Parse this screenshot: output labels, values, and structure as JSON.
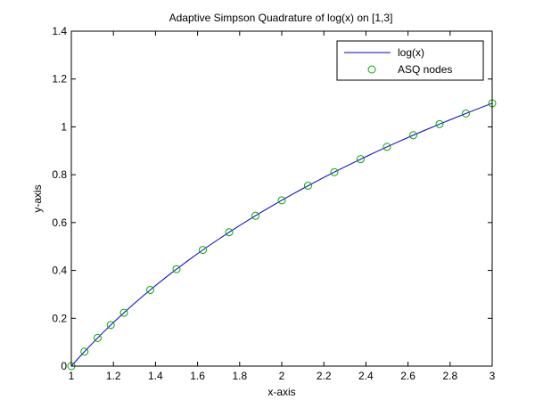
{
  "chart_data": {
    "type": "line",
    "title": "Adaptive Simpson Quadrature of log(x) on [1,3]",
    "xlabel": "x-axis",
    "ylabel": "y-axis",
    "xlim": [
      1,
      3
    ],
    "ylim": [
      0,
      1.4
    ],
    "xticks": [
      1,
      1.2,
      1.4,
      1.6,
      1.8,
      2,
      2.2,
      2.4,
      2.6,
      2.8,
      3
    ],
    "xtick_labels": [
      "1",
      "1.2",
      "1.4",
      "1.6",
      "1.8",
      "2",
      "2.2",
      "2.4",
      "2.6",
      "2.8",
      "3"
    ],
    "yticks": [
      0,
      0.2,
      0.4,
      0.6,
      0.8,
      1,
      1.2,
      1.4
    ],
    "ytick_labels": [
      "0",
      "0.2",
      "0.4",
      "0.6",
      "0.8",
      "1",
      "1.2",
      "1.4"
    ],
    "grid": false,
    "legend_position": "top-right",
    "series": [
      {
        "name": "log(x)",
        "style": "line",
        "color": "#0000cc",
        "x": [
          1,
          1.05,
          1.1,
          1.15,
          1.2,
          1.25,
          1.3,
          1.35,
          1.4,
          1.45,
          1.5,
          1.55,
          1.6,
          1.65,
          1.7,
          1.75,
          1.8,
          1.85,
          1.9,
          1.95,
          2,
          2.05,
          2.1,
          2.15,
          2.2,
          2.25,
          2.3,
          2.35,
          2.4,
          2.45,
          2.5,
          2.55,
          2.6,
          2.65,
          2.7,
          2.75,
          2.8,
          2.85,
          2.9,
          2.95,
          3
        ],
        "y": [
          0,
          0.0488,
          0.0953,
          0.1398,
          0.1823,
          0.2231,
          0.2624,
          0.3001,
          0.3365,
          0.3716,
          0.4055,
          0.4383,
          0.47,
          0.5008,
          0.5306,
          0.5596,
          0.5878,
          0.6152,
          0.6419,
          0.6678,
          0.6931,
          0.7178,
          0.7419,
          0.7655,
          0.7885,
          0.8109,
          0.8329,
          0.8544,
          0.8755,
          0.8961,
          0.9163,
          0.9361,
          0.9555,
          0.9746,
          0.9933,
          1.0116,
          1.0296,
          1.0473,
          1.0647,
          1.0818,
          1.0986
        ]
      },
      {
        "name": "ASQ nodes",
        "style": "marker-circle",
        "color": "#00aa00",
        "x": [
          1,
          1.0625,
          1.125,
          1.1875,
          1.25,
          1.375,
          1.5,
          1.625,
          1.75,
          1.875,
          2,
          2.125,
          2.25,
          2.375,
          2.5,
          2.625,
          2.75,
          2.875,
          3
        ],
        "y": [
          0,
          0.0606,
          0.1178,
          0.1719,
          0.2231,
          0.3185,
          0.4055,
          0.4855,
          0.5596,
          0.6286,
          0.6931,
          0.7538,
          0.8109,
          0.865,
          0.9163,
          0.9651,
          1.0116,
          1.0561,
          1.0986
        ]
      }
    ]
  }
}
